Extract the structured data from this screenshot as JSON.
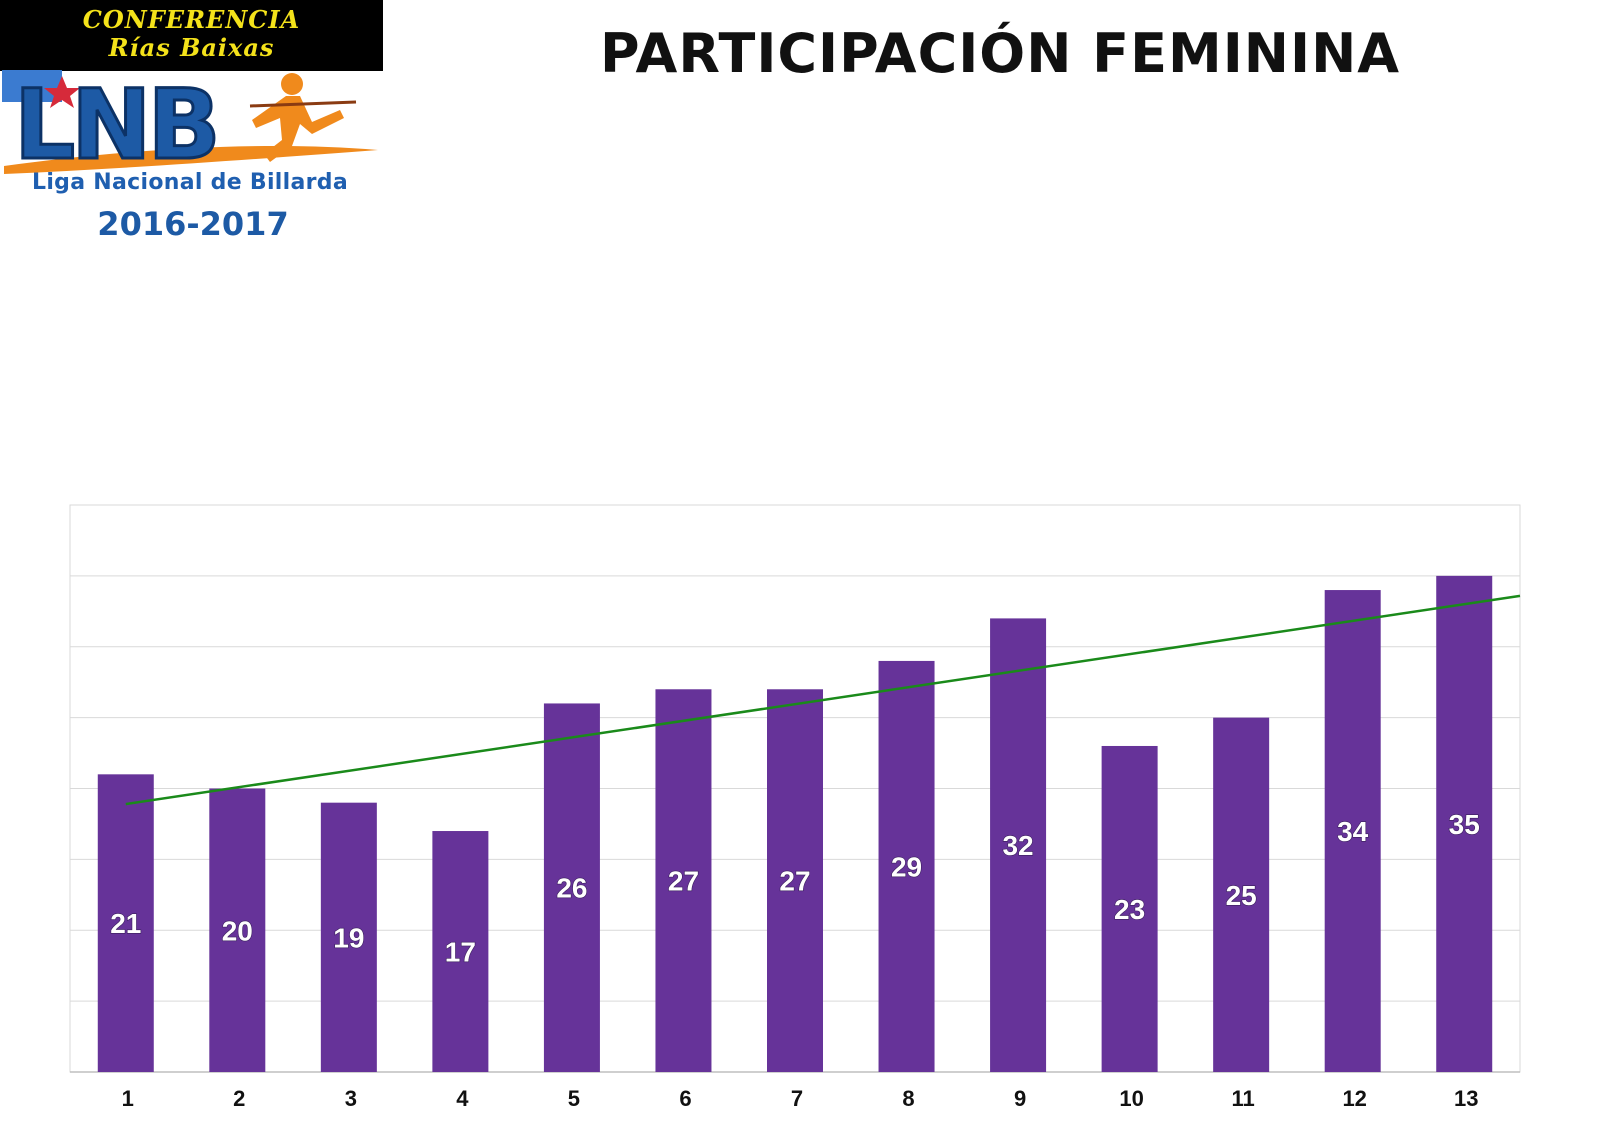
{
  "logo": {
    "banner_line1": "CONFERENCIA",
    "banner_line2": "Rías  Baixas",
    "mark": "LNB",
    "subtitle": "Liga Nacional de Billarda",
    "season": "2016-2017"
  },
  "title": "PARTICIPACIÓN FEMININA",
  "colors": {
    "bar": "#663399",
    "trendline": "#1a8a1a",
    "grid": "#d9d9d9",
    "logo_blue": "#1d5aa5",
    "logo_orange": "#f08a1c",
    "banner_text": "#f4e21a"
  },
  "chart_data": {
    "type": "bar",
    "title": "PARTICIPACIÓN FEMININA",
    "categories": [
      "1",
      "2",
      "3",
      "4",
      "5",
      "6",
      "7",
      "8",
      "9",
      "10",
      "11",
      "12",
      "13"
    ],
    "values": [
      21,
      20,
      19,
      17,
      26,
      27,
      27,
      29,
      32,
      23,
      25,
      34,
      35
    ],
    "ylim": [
      0,
      40
    ],
    "ystep": 5,
    "grid": true,
    "xlabel": "",
    "ylabel": "",
    "trendline": {
      "type": "linear",
      "from": 18.9,
      "to": 33.0
    }
  }
}
